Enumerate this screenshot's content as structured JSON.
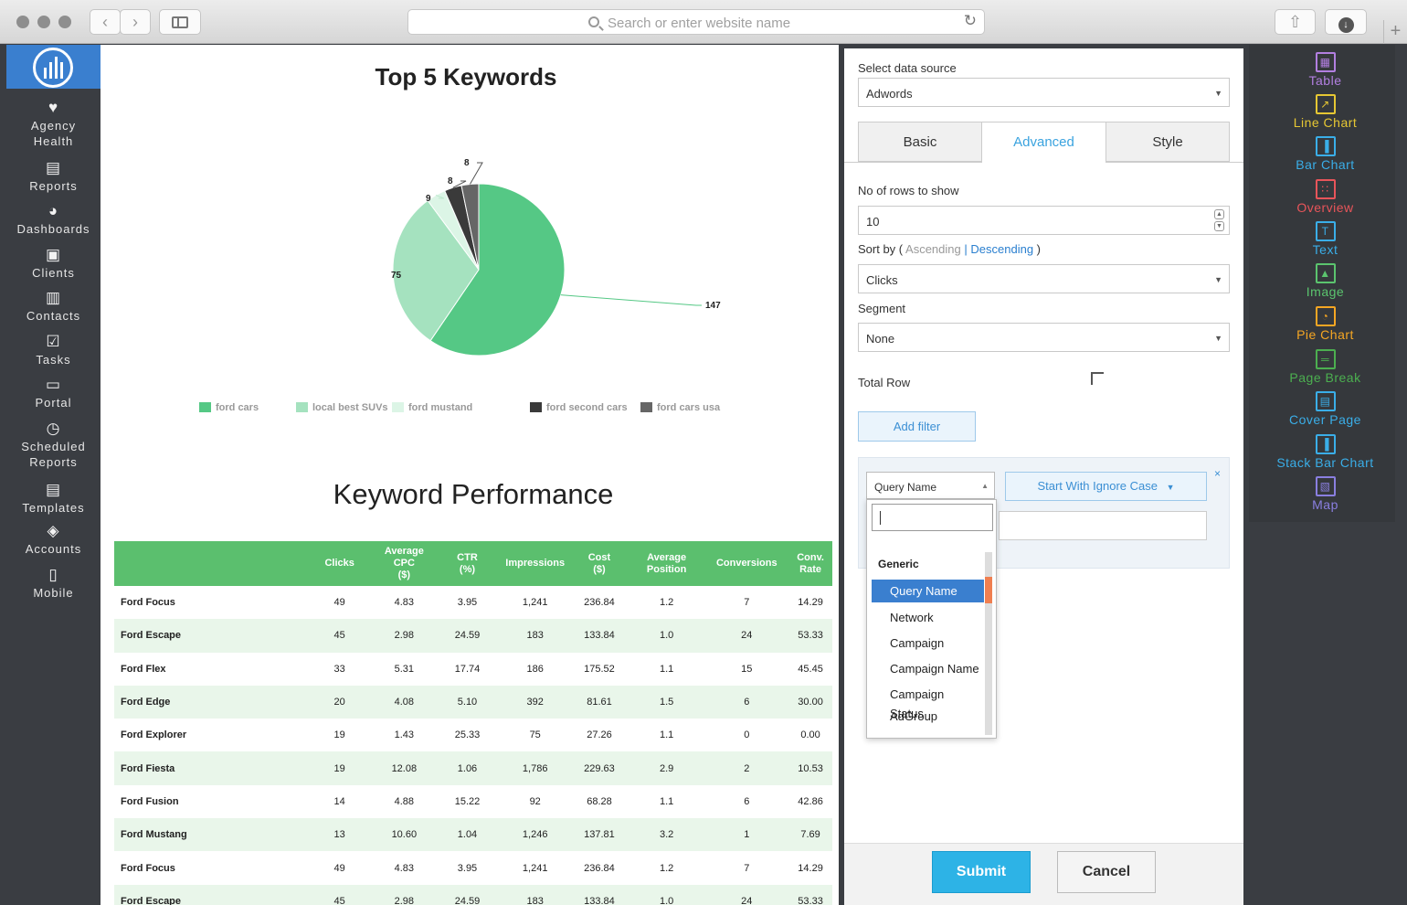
{
  "browser": {
    "address_placeholder": "Search or enter website name"
  },
  "sidebar": {
    "items": [
      {
        "label_lines": [
          "Agency",
          "Health"
        ],
        "icon": "heart-icon"
      },
      {
        "label_lines": [
          "Reports"
        ],
        "icon": "reports-icon"
      },
      {
        "label_lines": [
          "Dashboards"
        ],
        "icon": "pie-icon"
      },
      {
        "label_lines": [
          "Clients"
        ],
        "icon": "briefcase-icon"
      },
      {
        "label_lines": [
          "Contacts"
        ],
        "icon": "contacts-icon"
      },
      {
        "label_lines": [
          "Tasks"
        ],
        "icon": "checkbox-icon"
      },
      {
        "label_lines": [
          "Portal"
        ],
        "icon": "portal-icon"
      },
      {
        "label_lines": [
          "Scheduled",
          "Reports"
        ],
        "icon": "clock-icon"
      },
      {
        "label_lines": [
          "Templates"
        ],
        "icon": "template-icon"
      },
      {
        "label_lines": [
          "Accounts"
        ],
        "icon": "accounts-icon"
      },
      {
        "label_lines": [
          "Mobile"
        ],
        "icon": "mobile-icon"
      }
    ]
  },
  "report": {
    "pie_title": "Top 5 Keywords",
    "table_title": "Keyword Performance"
  },
  "chart_data": {
    "type": "pie",
    "title": "Top 5 Keywords",
    "categories": [
      "ford cars",
      "local best SUVs",
      "ford mustand",
      "ford second cars",
      "ford cars usa"
    ],
    "values": [
      147,
      75,
      9,
      8,
      8
    ],
    "colors": [
      "#55c885",
      "#a5e2bf",
      "#dcf5e6",
      "#3a3a3a",
      "#666666"
    ],
    "legend": "bottom"
  },
  "keyword_table": {
    "headers": [
      {
        "lines": [
          ""
        ]
      },
      {
        "lines": [
          "Clicks"
        ]
      },
      {
        "lines": [
          "Average CPC",
          "($)"
        ]
      },
      {
        "lines": [
          "CTR",
          "(%)"
        ]
      },
      {
        "lines": [
          "Impressions"
        ]
      },
      {
        "lines": [
          "Cost",
          "($)"
        ]
      },
      {
        "lines": [
          "Average",
          "Position"
        ]
      },
      {
        "lines": [
          "Conversions"
        ]
      },
      {
        "lines": [
          "Conv.",
          "Rate"
        ]
      }
    ],
    "rows": [
      [
        "Ford Focus",
        "49",
        "4.83",
        "3.95",
        "1,241",
        "236.84",
        "1.2",
        "7",
        "14.29"
      ],
      [
        "Ford Escape",
        "45",
        "2.98",
        "24.59",
        "183",
        "133.84",
        "1.0",
        "24",
        "53.33"
      ],
      [
        "Ford Flex",
        "33",
        "5.31",
        "17.74",
        "186",
        "175.52",
        "1.1",
        "15",
        "45.45"
      ],
      [
        "Ford Edge",
        "20",
        "4.08",
        "5.10",
        "392",
        "81.61",
        "1.5",
        "6",
        "30.00"
      ],
      [
        "Ford Explorer",
        "19",
        "1.43",
        "25.33",
        "75",
        "27.26",
        "1.1",
        "0",
        "0.00"
      ],
      [
        "Ford Fiesta",
        "19",
        "12.08",
        "1.06",
        "1,786",
        "229.63",
        "2.9",
        "2",
        "10.53"
      ],
      [
        "Ford Fusion",
        "14",
        "4.88",
        "15.22",
        "92",
        "68.28",
        "1.1",
        "6",
        "42.86"
      ],
      [
        "Ford Mustang",
        "13",
        "10.60",
        "1.04",
        "1,246",
        "137.81",
        "3.2",
        "1",
        "7.69"
      ],
      [
        "Ford Focus",
        "49",
        "4.83",
        "3.95",
        "1,241",
        "236.84",
        "1.2",
        "7",
        "14.29"
      ],
      [
        "Ford Escape",
        "45",
        "2.98",
        "24.59",
        "183",
        "133.84",
        "1.0",
        "24",
        "53.33"
      ]
    ]
  },
  "panel": {
    "data_source_label": "Select data source",
    "data_source_value": "Adwords",
    "tabs": [
      "Basic",
      "Advanced",
      "Style"
    ],
    "active_tab": "Advanced",
    "rows_label": "No of rows to show",
    "rows_value": "10",
    "sort_prefix": "Sort by (",
    "sort_asc": "Ascending",
    "sort_sep": "|",
    "sort_desc": "Descending",
    "sort_suffix": ")",
    "sort_value": "Clicks",
    "segment_label": "Segment",
    "segment_value": "None",
    "total_row_label": "Total Row",
    "add_filter_label": "Add filter",
    "filter_field": "Query Name",
    "filter_operator": "Start With Ignore Case",
    "filter_close": "×",
    "submit_label": "Submit",
    "cancel_label": "Cancel"
  },
  "dropdown": {
    "group": "Generic",
    "items": [
      "Query Name",
      "Network",
      "Campaign",
      "Campaign Name",
      "Campaign Status",
      "AdGroup"
    ],
    "selected": "Query Name"
  },
  "palette": {
    "widgets": [
      {
        "label": "Table",
        "color": "#b27fe0",
        "icon": "table-icon"
      },
      {
        "label": "Line Chart",
        "color": "#e6c733",
        "icon": "line-chart-icon"
      },
      {
        "label": "Bar Chart",
        "color": "#3aaee8",
        "icon": "bar-chart-icon"
      },
      {
        "label": "Overview",
        "color": "#e8555a",
        "icon": "overview-icon"
      },
      {
        "label": "Text",
        "color": "#3aaee8",
        "icon": "text-icon"
      },
      {
        "label": "Image",
        "color": "#5bc46e",
        "icon": "image-icon"
      },
      {
        "label": "Pie Chart",
        "color": "#f5a623",
        "icon": "pie-chart-icon"
      },
      {
        "label": "Page Break",
        "color": "#4caf50",
        "icon": "page-break-icon"
      },
      {
        "label": "Cover Page",
        "color": "#3aaee8",
        "icon": "cover-page-icon"
      },
      {
        "label": "Stack Bar Chart",
        "color": "#3aaee8",
        "icon": "stack-bar-icon"
      },
      {
        "label": "Map",
        "color": "#8a7fe0",
        "icon": "map-icon"
      }
    ]
  }
}
